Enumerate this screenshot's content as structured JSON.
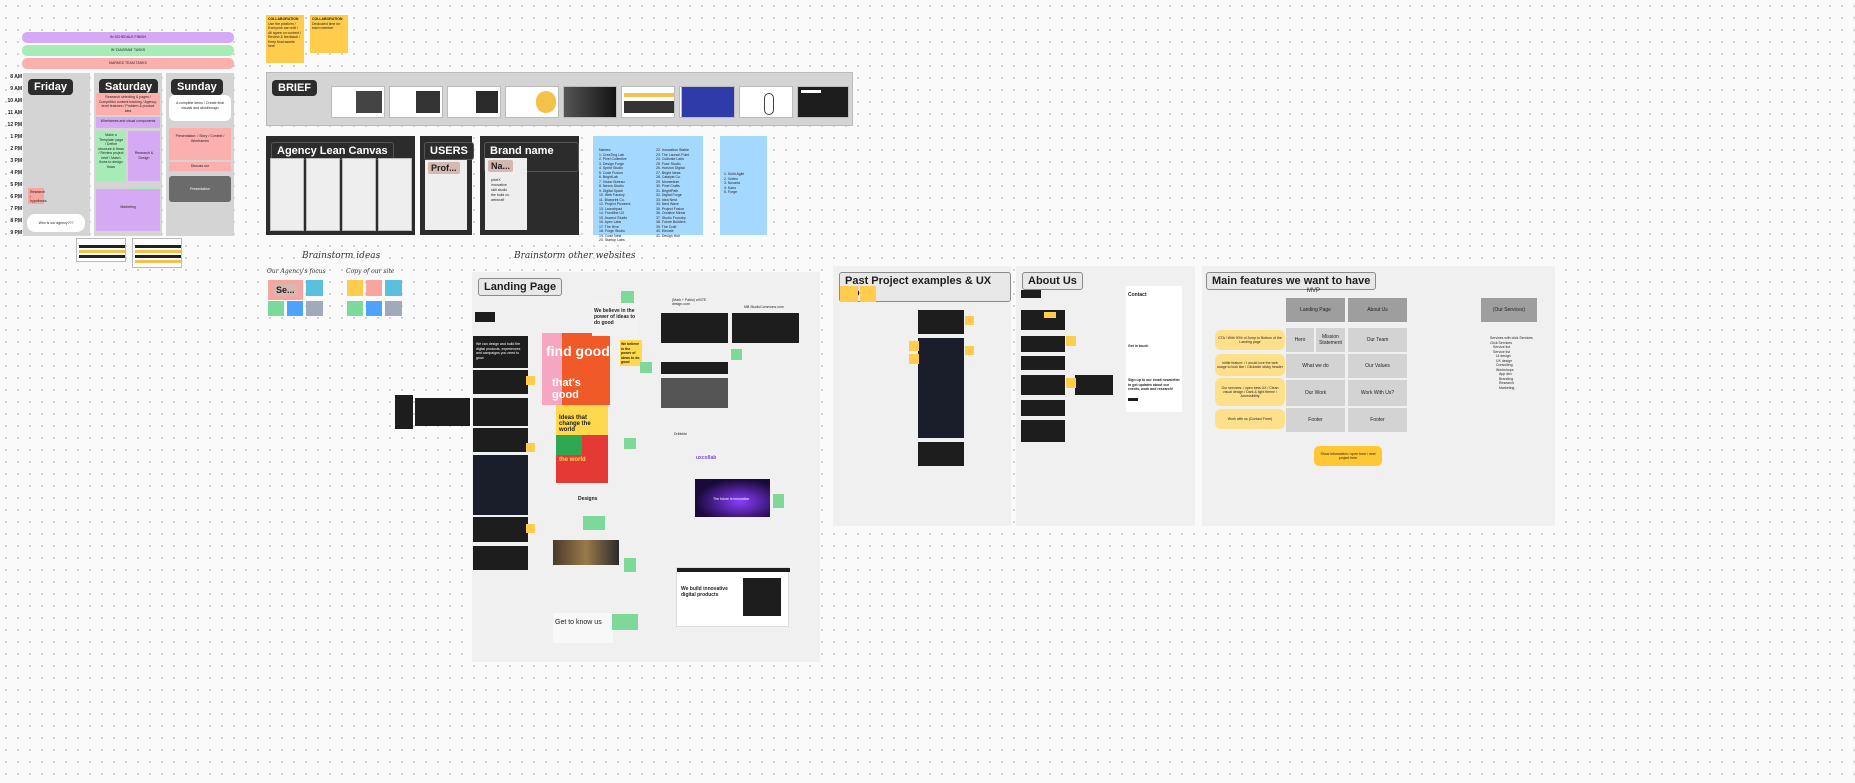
{
  "schedule": {
    "bands": [
      "IN SCHEDULE FINISH",
      "IN 'DIAGRAM' TASKS",
      "MARKED TEAM TASKS"
    ],
    "hours": [
      "8 AM",
      "9 AM",
      "10 AM",
      "11 AM",
      "12 PM",
      "1 PM",
      "2 PM",
      "3 PM",
      "4 PM",
      "5 PM",
      "6 PM",
      "7 PM",
      "8 PM",
      "9 PM"
    ],
    "days": [
      "Friday",
      "Saturday",
      "Sunday"
    ],
    "friday_note": "Who is our agency???",
    "friday_sticky": "Research / hypothesis",
    "saturday_blocks": [
      "Research selecting & pages / Competitor content tracking / Agency-level features / Problem & product idea",
      "Wireframes and visual components",
      "Make a 'Template' page / Define structure & flows / Review project brief / Match flows to design flows",
      "Research & Design",
      "Presentation",
      "Marketing"
    ],
    "sunday_blocks": [
      "A complete demo / Create final visuals and clickthrough",
      "Presentation: / Story / Context / Wireframes",
      "Discuss our",
      "Presentation"
    ]
  },
  "collab": [
    {
      "title": "COLLABORATION",
      "body": "Use the platform / Everyone can edit / All agree on content / Review & feedback / Keep final assets here"
    },
    {
      "title": "COLLABORATION",
      "body": "Dedicated time for each member"
    }
  ],
  "brief": {
    "title": "BRIEF"
  },
  "agency_canvas": {
    "title": "Agency Lean Canvas"
  },
  "users": {
    "title": "USERS",
    "sub": "Prof..."
  },
  "brand": {
    "title": "Brand name ideas",
    "sub": "Na...",
    "list": [
      "pixelX",
      "innovative",
      "skill studio",
      "the build co.",
      "webcraft"
    ]
  },
  "name_list_left": [
    "Names:",
    "1. CreaTing Lab",
    "2. Pixel Collective",
    "3. Design Forge",
    "4. Sprint Studio",
    "5. Code Fusion",
    "6. BrightLab",
    "7. Vision Bureau",
    "8. Nexus Studio",
    "9. Digital Spark",
    "10. Web Factory",
    "11. Blueprint Co.",
    "12. Project Pioneers",
    "13. Launchpad",
    "14. Frontline UX",
    "15. Ascend Studio",
    "16. Apex Labs",
    "17. The Hive",
    "18. Forge Studio",
    "19. Code Nest",
    "20. Startup Labs",
    "21. Studio Orbit"
  ],
  "name_list_right": [
    "22. Innovation Stable",
    "23. The Launch Point",
    "24. Cultivate Labs",
    "25. Fuse Studio",
    "26. Horizon Digital",
    "27. Bright Ideas",
    "28. Catalyst Co.",
    "29. Momentum",
    "30. Pixel Crafts",
    "31. BrightPath",
    "32. Digital Forge",
    "33. Idea Nest",
    "34. Next Wave",
    "35. Project Fusion",
    "36. Creative Minds",
    "37. Studio Foundry",
    "38. Future Builders",
    "39. The Craft",
    "40. Elevate",
    "41. Design Hub"
  ],
  "name_list_small": [
    "1. Solid Agile",
    "2. Vortex",
    "3. Novaria",
    "4. Kairo",
    "5. Forge"
  ],
  "brainstorm_ideas": {
    "title": "Brainstorm ideas",
    "col1": "Our Agency's focus",
    "col2": "Copy of our site",
    "sub": "Se..."
  },
  "brainstorm_websites": "Brainstorm other websites",
  "landing": {
    "title": "Landing Page",
    "hero_text": "We believe in the power of ideas to do good",
    "find_good": "find good",
    "thats_good": "that's good",
    "ideas": "Ideas that change the world",
    "the_world": "the world",
    "designs": "Designs",
    "get_to_know": "Get to know us",
    "we_build": "We build innovative digital products",
    "we_build_note": "(Mark + Pablo) wSITE design.com",
    "web_dir": "MB.StudioCommons.com",
    "source": "Dribbble",
    "launch": "The future is innovation",
    "uxcoll": "uxcollab",
    "lead": "We can design and build the digital products, experiences and campaigns you need to grow."
  },
  "past_projects": {
    "title": "Past Project examples & UX Copy"
  },
  "about": {
    "title": "About Us",
    "contact": "Contact",
    "signup": "Sign up to our email newsletter to get updates about our events, work and research!",
    "get_in_touch": "Get in touch"
  },
  "features": {
    "title": "Main features we want to have",
    "mvp": "MVP",
    "col_heads": [
      "Landing Page",
      "About Us"
    ],
    "our_services": "(Our Services)",
    "grid": [
      [
        "Hero",
        "Mission Statement",
        "Our Team"
      ],
      [
        "What we do",
        "Our Values"
      ],
      [
        "Our Work",
        "Work With Us?"
      ],
      [
        "Footer",
        "Footer"
      ]
    ],
    "yellow_notes": [
      "CTA / With 90% of Jump to Bottom of the Landing page",
      "Intitle feature: / I would love the web usage to look like / Clickable sticky header",
      "Our services: / open beta UX / Clean visual design / Dark & light theme / Accessibility",
      "Work with us (Contact Form)"
    ],
    "cta": "Show information / open form / new project form",
    "side_notes": [
      "Services with click Services",
      "Click Services",
      "Service list",
      "Service list",
      "Ui design",
      "UX design",
      "Consulting",
      "Workshops",
      "App dev",
      "Branding",
      "Research",
      "Marketing"
    ]
  }
}
